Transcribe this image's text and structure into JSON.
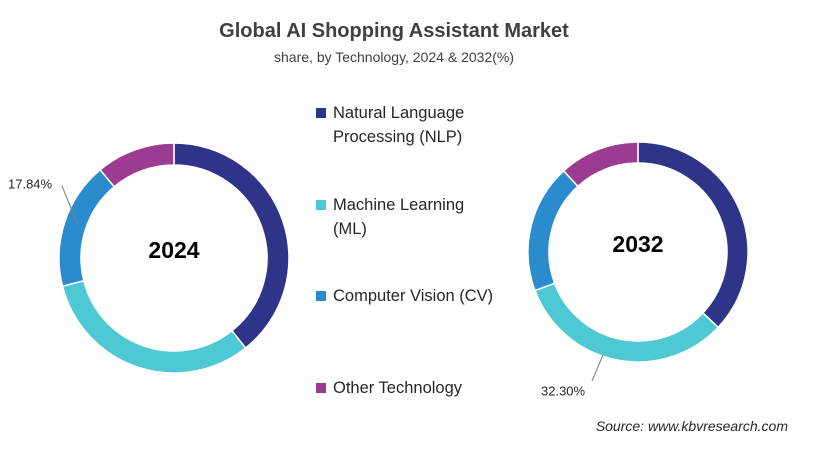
{
  "title": "Global AI Shopping Assistant Market",
  "subtitle": "share, by Technology, 2024 & 2032(%)",
  "source": "Source: www.kbvresearch.com",
  "chart_data": [
    {
      "type": "donut",
      "center_label": "2024",
      "categories": [
        "Natural Language Processing (NLP)",
        "Machine Learning (ML)",
        "Computer Vision (CV)",
        "Other Technology"
      ],
      "colors": [
        "#2e3488",
        "#4ec8d2",
        "#2a8ccc",
        "#9b3b92"
      ],
      "values": [
        39.3,
        31.76,
        17.84,
        11.1
      ],
      "value_labels": [
        null,
        null,
        "17.84%",
        null
      ]
    },
    {
      "type": "donut",
      "center_label": "2032",
      "categories": [
        "Natural Language Processing (NLP)",
        "Machine Learning (ML)",
        "Computer Vision (CV)",
        "Other Technology"
      ],
      "colors": [
        "#2e3488",
        "#4ec8d2",
        "#2a8ccc",
        "#9b3b92"
      ],
      "values": [
        37,
        32.3,
        18.9,
        11.8
      ],
      "value_labels": [
        null,
        "32.30%",
        null,
        null
      ]
    }
  ]
}
